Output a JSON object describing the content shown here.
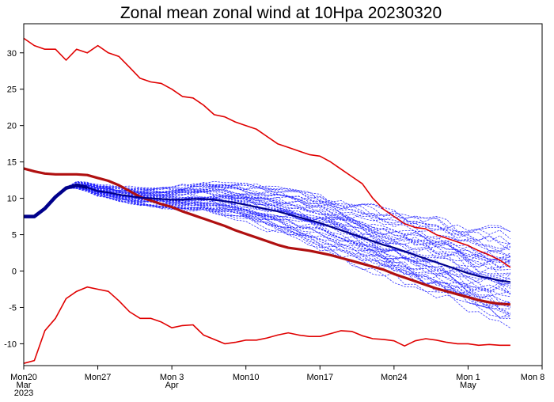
{
  "chart_data": {
    "type": "line",
    "title": "Zonal mean zonal wind at 10Hpa 20230320",
    "xlabel": "",
    "ylabel": "",
    "ylim": [
      -13,
      34
    ],
    "xlim_days": [
      0,
      49
    ],
    "y_ticks": [
      -10,
      -5,
      0,
      5,
      10,
      15,
      20,
      25,
      30
    ],
    "x_ticks": [
      {
        "day": 0,
        "lines": [
          "Mon20",
          "Mar",
          "2023"
        ]
      },
      {
        "day": 7,
        "lines": [
          "Mon27"
        ]
      },
      {
        "day": 14,
        "lines": [
          "Mon 3",
          "Apr"
        ]
      },
      {
        "day": 21,
        "lines": [
          "Mon10"
        ]
      },
      {
        "day": 28,
        "lines": [
          "Mon17"
        ]
      },
      {
        "day": 35,
        "lines": [
          "Mon24"
        ]
      },
      {
        "day": 42,
        "lines": [
          "Mon 1",
          "May"
        ]
      },
      {
        "day": 49,
        "lines": [
          "Mon 8"
        ]
      }
    ],
    "colors": {
      "climatology_extremes": "#e00000",
      "climatology_mean": "#b01010",
      "ensemble_members": "#2020ff",
      "ensemble_mean": "#00008b"
    },
    "series": [
      {
        "name": "climatology max",
        "x": [
          0,
          1,
          2,
          3,
          4,
          5,
          6,
          7,
          8,
          9,
          10,
          11,
          12,
          13,
          14,
          15,
          16,
          17,
          18,
          19,
          20,
          21,
          22,
          23,
          24,
          25,
          26,
          27,
          28,
          29,
          30,
          31,
          32,
          33,
          34,
          35,
          36,
          37,
          38,
          39,
          40,
          41,
          42,
          43,
          44,
          45,
          46
        ],
        "values": [
          32,
          31,
          30.5,
          30.5,
          29,
          30.5,
          30,
          31,
          30,
          29.5,
          28,
          26.5,
          26,
          25.8,
          25,
          24,
          23.8,
          22.8,
          21.5,
          21.2,
          20.5,
          20,
          19.5,
          18.5,
          17.5,
          17,
          16.5,
          16,
          15.8,
          15,
          14,
          13,
          12,
          10,
          8.5,
          7.5,
          6.5,
          6,
          5.8,
          5,
          4.5,
          4,
          3.5,
          2.8,
          2.2,
          1.5,
          0.5
        ]
      },
      {
        "name": "climatology min",
        "x": [
          0,
          1,
          2,
          3,
          4,
          5,
          6,
          7,
          8,
          9,
          10,
          11,
          12,
          13,
          14,
          15,
          16,
          17,
          18,
          19,
          20,
          21,
          22,
          23,
          24,
          25,
          26,
          27,
          28,
          29,
          30,
          31,
          32,
          33,
          34,
          35,
          36,
          37,
          38,
          39,
          40,
          41,
          42,
          43,
          44,
          45,
          46
        ],
        "values": [
          -12.7,
          -12.3,
          -8.2,
          -6.5,
          -3.8,
          -2.8,
          -2.2,
          -2.5,
          -2.8,
          -4.1,
          -5.6,
          -6.5,
          -6.5,
          -7,
          -7.8,
          -7.5,
          -7.4,
          -8.8,
          -9.4,
          -10,
          -9.8,
          -9.5,
          -9.5,
          -9.2,
          -8.8,
          -8.5,
          -8.8,
          -9,
          -9,
          -8.6,
          -8.2,
          -8.3,
          -8.9,
          -9.3,
          -9.4,
          -9.6,
          -10.3,
          -9.6,
          -9.3,
          -9.5,
          -9.8,
          -10,
          -10,
          -10.2,
          -10.1,
          -10.2,
          -10.2
        ]
      },
      {
        "name": "climatology mean",
        "x": [
          0,
          1,
          2,
          3,
          4,
          5,
          6,
          7,
          8,
          9,
          10,
          11,
          12,
          13,
          14,
          15,
          16,
          17,
          18,
          19,
          20,
          21,
          22,
          23,
          24,
          25,
          26,
          27,
          28,
          29,
          30,
          31,
          32,
          33,
          34,
          35,
          36,
          37,
          38,
          39,
          40,
          41,
          42,
          43,
          44,
          45,
          46
        ],
        "values": [
          14.1,
          13.7,
          13.4,
          13.3,
          13.3,
          13.3,
          13.2,
          12.8,
          12.4,
          11.8,
          11,
          10.2,
          9.7,
          9.2,
          8.8,
          8.2,
          7.7,
          7.2,
          6.7,
          6.2,
          5.6,
          5.1,
          4.6,
          4.1,
          3.6,
          3.2,
          3,
          2.8,
          2.5,
          2.2,
          1.8,
          1.4,
          1,
          0.6,
          0.2,
          -0.4,
          -0.9,
          -1.4,
          -1.9,
          -2.4,
          -2.8,
          -3.2,
          -3.6,
          -4,
          -4.3,
          -4.5,
          -4.6
        ]
      },
      {
        "name": "ensemble mean",
        "x": [
          0,
          1,
          2,
          3,
          4,
          5,
          6,
          7,
          8,
          9,
          10,
          11,
          12,
          13,
          14,
          15,
          16,
          17,
          18,
          19,
          20,
          21,
          22,
          23,
          24,
          25,
          26,
          27,
          28,
          29,
          30,
          31,
          32,
          33,
          34,
          35,
          36,
          37,
          38,
          39,
          40,
          41,
          42,
          43,
          44,
          45,
          46
        ],
        "values": [
          7.5,
          7.5,
          8.6,
          10.2,
          11.4,
          11.8,
          11.5,
          11,
          10.8,
          10.5,
          10.3,
          10.1,
          10,
          9.9,
          9.8,
          9.8,
          9.9,
          9.9,
          9.8,
          9.6,
          9.4,
          9.1,
          8.8,
          8.5,
          8.2,
          7.8,
          7.4,
          7,
          6.6,
          6.1,
          5.6,
          5.1,
          4.6,
          4.1,
          3.6,
          3.2,
          2.7,
          2.2,
          1.7,
          1.2,
          0.7,
          0.2,
          -0.3,
          -0.7,
          -1,
          -1.3,
          -1.5
        ]
      }
    ],
    "ensemble_members": {
      "count": 50,
      "x_range": [
        0,
        46
      ],
      "start_value": 7.5,
      "end_range": [
        -6,
        4
      ],
      "style": "dashed"
    }
  }
}
